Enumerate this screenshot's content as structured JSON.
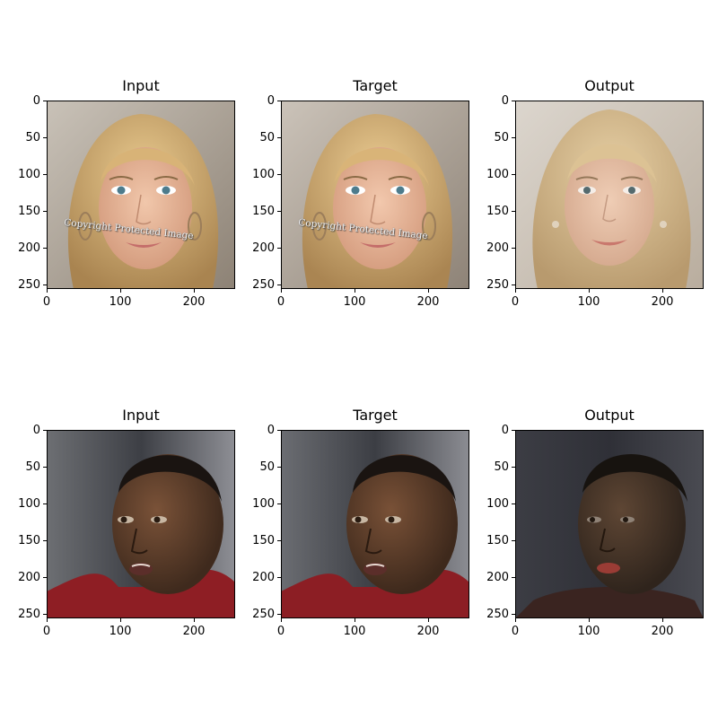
{
  "panels": [
    {
      "title": "Input"
    },
    {
      "title": "Target"
    },
    {
      "title": "Output"
    },
    {
      "title": "Input"
    },
    {
      "title": "Target"
    },
    {
      "title": "Output"
    }
  ],
  "axes": {
    "y_ticks": [
      "0",
      "50",
      "100",
      "150",
      "200",
      "250"
    ],
    "x_ticks": [
      "0",
      "100",
      "200"
    ]
  },
  "watermark_text": "Copyright Protected Image"
}
